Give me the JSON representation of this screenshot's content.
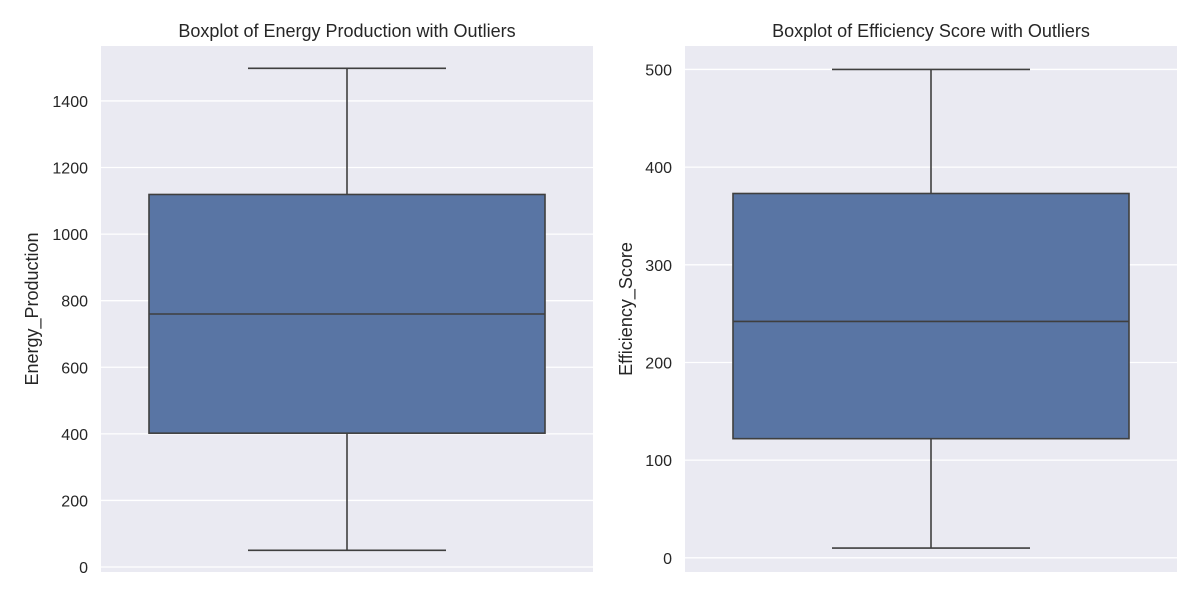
{
  "chart_data": [
    {
      "type": "boxplot",
      "title": "Boxplot of Energy Production with Outliers",
      "ylabel": "Energy_Production",
      "xlabel": "",
      "ylim": [
        -15,
        1565
      ],
      "yticks": [
        0,
        200,
        400,
        600,
        800,
        1000,
        1200,
        1400
      ],
      "ytick_labels": [
        "0",
        "200",
        "400",
        "600",
        "800",
        "1000",
        "1200",
        "1400"
      ],
      "box": {
        "min": 50,
        "q1": 402,
        "median": 760,
        "q3": 1119,
        "max": 1498
      },
      "grid": true,
      "colors": {
        "box": "#5975a4",
        "line": "#3f3f3f",
        "background": "#eaeaf2",
        "grid": "#ffffff"
      }
    },
    {
      "type": "boxplot",
      "title": "Boxplot of Efficiency Score with Outliers",
      "ylabel": "Efficiency_Score",
      "xlabel": "",
      "ylim": [
        -14.5,
        524
      ],
      "yticks": [
        0,
        100,
        200,
        300,
        400,
        500
      ],
      "ytick_labels": [
        "0",
        "100",
        "200",
        "300",
        "400",
        "500"
      ],
      "box": {
        "min": 10,
        "q1": 122,
        "median": 242,
        "q3": 373,
        "max": 500
      },
      "grid": true,
      "colors": {
        "box": "#5975a4",
        "line": "#3f3f3f",
        "background": "#eaeaf2",
        "grid": "#ffffff"
      }
    }
  ]
}
